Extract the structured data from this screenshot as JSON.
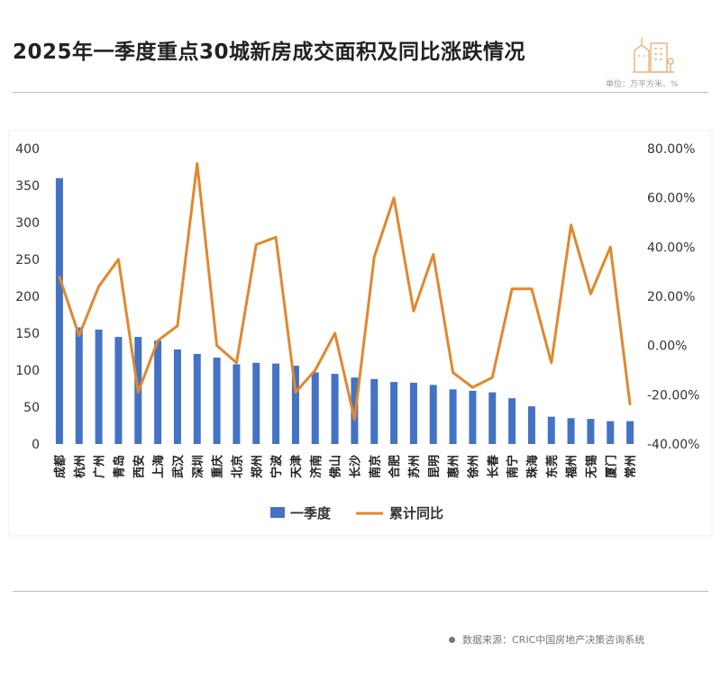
{
  "header": {
    "title": "2025年一季度重点30城新房成交面积及同比涨跌情况",
    "unit": "单位：万平方米、%",
    "logo": "building-icon"
  },
  "footer": {
    "source": "数据来源：CRIC中国房地产决策咨询系统"
  },
  "colors": {
    "bar": "#4472C4",
    "line": "#E0882E"
  },
  "chart_data": {
    "type": "bar+line",
    "categories": [
      "成都",
      "杭州",
      "广州",
      "青岛",
      "西安",
      "上海",
      "武汉",
      "深圳",
      "重庆",
      "北京",
      "郑州",
      "宁波",
      "天津",
      "济南",
      "佛山",
      "长沙",
      "南京",
      "合肥",
      "苏州",
      "昆明",
      "惠州",
      "徐州",
      "长春",
      "南宁",
      "珠海",
      "东莞",
      "福州",
      "无锡",
      "厦门",
      "常州"
    ],
    "series": [
      {
        "name": "一季度",
        "type": "bar",
        "axis": "left",
        "values": [
          360,
          158,
          155,
          145,
          145,
          140,
          128,
          122,
          117,
          108,
          110,
          109,
          106,
          97,
          95,
          90,
          88,
          84,
          83,
          80,
          74,
          72,
          70,
          62,
          51,
          37,
          35,
          34,
          31,
          31
        ]
      },
      {
        "name": "累计同比",
        "type": "line",
        "axis": "right",
        "values": [
          28,
          4,
          24,
          35,
          -19,
          2,
          8,
          74,
          0,
          -7,
          41,
          44,
          -19,
          -10,
          5,
          -30,
          36,
          60,
          14,
          37,
          -11,
          -17,
          -13,
          23,
          23,
          -7,
          49,
          21,
          40,
          -24
        ]
      }
    ],
    "ylim_left": [
      0,
      400
    ],
    "yticks_left": [
      "0",
      "50",
      "100",
      "150",
      "200",
      "250",
      "300",
      "350",
      "400"
    ],
    "ylim_right": [
      -40,
      80
    ],
    "yticks_right": [
      "-40.00%",
      "-20.00%",
      "0.00%",
      "20.00%",
      "40.00%",
      "60.00%",
      "80.00%"
    ],
    "legend": "bottom",
    "grid": false
  }
}
